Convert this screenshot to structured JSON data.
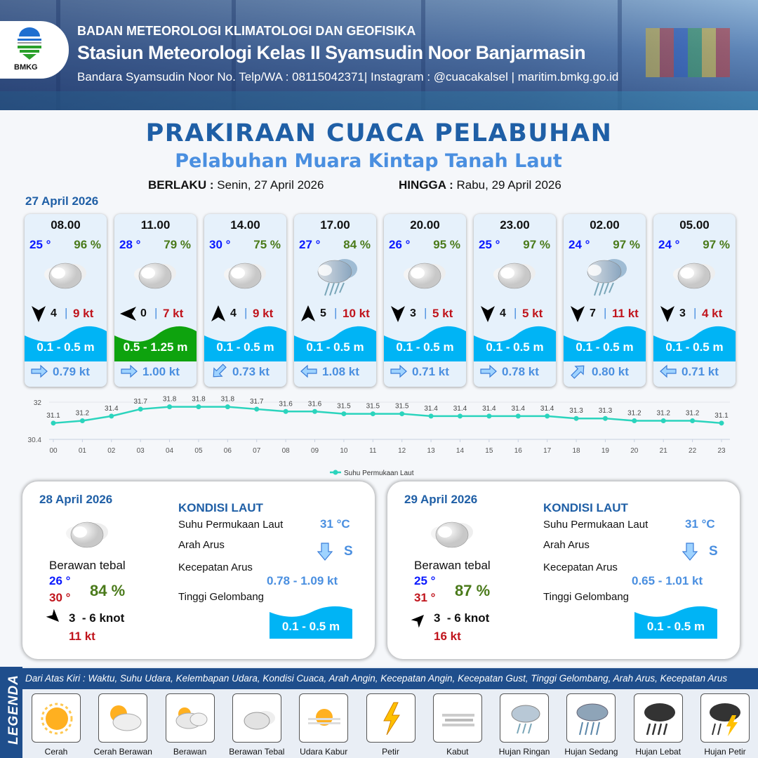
{
  "header": {
    "agency": "BADAN METEOROLOGI KLIMATOLOGI DAN GEOFISIKA",
    "station": "Stasiun Meteorologi Kelas II Syamsudin Noor Banjarmasin",
    "contact": "Bandara Syamsudin Noor No. Telp/WA : 08115042371| Instagram : @cuacakalsel | maritim.bmkg.go.id",
    "logo_text": "BMKG"
  },
  "title": "PRAKIRAAN CUACA PELABUHAN",
  "subtitle": "Pelabuhan Muara Kintap Tanah Laut",
  "validity": {
    "from_label": "BERLAKU :",
    "from_value": "Senin, 27 April 2026",
    "to_label": "HINGGA :",
    "to_value": "Rabu, 29 April 2026"
  },
  "day1_date": "27 April 2026",
  "colors": {
    "wave_low": "#00b4f5",
    "wave_moderate": "#0ea30e",
    "accent": "#1f5fa6",
    "sst_line": "#2bd4bd"
  },
  "forecasts": [
    {
      "time": "08.00",
      "temp": "25 °",
      "humidity": "96 %",
      "weather_icon": "berawan-tebal",
      "wind_dir": "arrow-down",
      "wind_speed": "4",
      "gust": "9 kt",
      "wave": "0.1 - 0.5 m",
      "wave_class": "low",
      "current_dir": "arrow-left",
      "current_speed": "0.79 kt"
    },
    {
      "time": "11.00",
      "temp": "28 °",
      "humidity": "79 %",
      "weather_icon": "berawan-tebal",
      "wind_dir": "arrow-left",
      "wind_speed": "0",
      "gust": "7 kt",
      "wave": "0.5 - 1.25 m",
      "wave_class": "moderate",
      "current_dir": "arrow-left",
      "current_speed": "1.00 kt"
    },
    {
      "time": "14.00",
      "temp": "30 °",
      "humidity": "75 %",
      "weather_icon": "berawan-tebal",
      "wind_dir": "arrow-up",
      "wind_speed": "4",
      "gust": "9 kt",
      "wave": "0.1 - 0.5 m",
      "wave_class": "low",
      "current_dir": "arrow-up-right",
      "current_speed": "0.73 kt"
    },
    {
      "time": "17.00",
      "temp": "27 °",
      "humidity": "84 %",
      "weather_icon": "hujan-ringan",
      "wind_dir": "arrow-up",
      "wind_speed": "5",
      "gust": "10 kt",
      "wave": "0.1 - 0.5 m",
      "wave_class": "low",
      "current_dir": "arrow-right",
      "current_speed": "1.08 kt"
    },
    {
      "time": "20.00",
      "temp": "26 °",
      "humidity": "95 %",
      "weather_icon": "berawan-tebal",
      "wind_dir": "arrow-down",
      "wind_speed": "3",
      "gust": "5 kt",
      "wave": "0.1 - 0.5 m",
      "wave_class": "low",
      "current_dir": "arrow-left",
      "current_speed": "0.71 kt"
    },
    {
      "time": "23.00",
      "temp": "25 °",
      "humidity": "97 %",
      "weather_icon": "berawan-tebal",
      "wind_dir": "arrow-down",
      "wind_speed": "4",
      "gust": "5 kt",
      "wave": "0.1 - 0.5 m",
      "wave_class": "low",
      "current_dir": "arrow-left",
      "current_speed": "0.78 kt"
    },
    {
      "time": "02.00",
      "temp": "24 °",
      "humidity": "97 %",
      "weather_icon": "hujan-ringan",
      "wind_dir": "arrow-down",
      "wind_speed": "7",
      "gust": "11 kt",
      "wave": "0.1 - 0.5 m",
      "wave_class": "low",
      "current_dir": "arrow-down-left",
      "current_speed": "0.80 kt"
    },
    {
      "time": "05.00",
      "temp": "24 °",
      "humidity": "97 %",
      "weather_icon": "berawan-tebal",
      "wind_dir": "arrow-down",
      "wind_speed": "3",
      "gust": "4 kt",
      "wave": "0.1 - 0.5 m",
      "wave_class": "low",
      "current_dir": "arrow-right",
      "current_speed": "0.71 kt"
    }
  ],
  "chart_data": {
    "type": "line",
    "categories": [
      "00",
      "01",
      "02",
      "03",
      "04",
      "05",
      "06",
      "07",
      "08",
      "09",
      "10",
      "11",
      "12",
      "13",
      "14",
      "15",
      "16",
      "17",
      "18",
      "19",
      "20",
      "21",
      "22",
      "23"
    ],
    "series": [
      {
        "name": "Suhu Permukaan Laut",
        "values": [
          31.1,
          31.2,
          31.4,
          31.7,
          31.8,
          31.8,
          31.8,
          31.7,
          31.6,
          31.6,
          31.5,
          31.5,
          31.5,
          31.4,
          31.4,
          31.4,
          31.4,
          31.4,
          31.3,
          31.3,
          31.2,
          31.2,
          31.2,
          31.1
        ]
      }
    ],
    "yticks": [
      "32",
      "30.4"
    ],
    "ylim": [
      30.4,
      32
    ],
    "legend": "bottom",
    "grid": true
  },
  "days": [
    {
      "date": "28 April 2026",
      "condition": "Berawan tebal",
      "weather_icon": "berawan-tebal",
      "temp_min": "26 °",
      "temp_max": "30 °",
      "humidity": "84 %",
      "wind_dir": "arrow-down-right",
      "wind_speed": "3  - 6 knot",
      "gust": "11 kt",
      "sea_title": "KONDISI LAUT",
      "sst_label": "Suhu Permukaan Laut",
      "sst": "31 °C",
      "current_dir_label": "Arah Arus",
      "current_dir": "S",
      "current_speed_label": "Kecepatan Arus",
      "current_speed": "0.78 - 1.09 kt",
      "wave_label": "Tinggi Gelombang",
      "wave": "0.1 - 0.5 m"
    },
    {
      "date": "29 April 2026",
      "condition": "Berawan tebal",
      "weather_icon": "berawan-tebal",
      "temp_min": "25 °",
      "temp_max": "31 °",
      "humidity": "87 %",
      "wind_dir": "arrow-up-right",
      "wind_speed": "3  - 6 knot",
      "gust": "16 kt",
      "sea_title": "KONDISI LAUT",
      "sst_label": "Suhu Permukaan Laut",
      "sst": "31 °C",
      "current_dir_label": "Arah Arus",
      "current_dir": "S",
      "current_speed_label": "Kecepatan Arus",
      "current_speed": "0.65 - 1.01 kt",
      "wave_label": "Tinggi Gelombang",
      "wave": "0.1 - 0.5 m"
    }
  ],
  "legend": {
    "title": "LEGENDA",
    "description": "Dari Atas Kiri : Waktu, Suhu Udara, Kelembapan Udara, Kondisi Cuaca, Arah Angin, Kecepatan Angin, Kecepatan Gust, Tinggi Gelombang, Arah Arus, Kecepatan Arus",
    "items": [
      {
        "label": "Cerah",
        "icon": "cerah"
      },
      {
        "label": "Cerah Berawan",
        "icon": "cerah-berawan"
      },
      {
        "label": "Berawan",
        "icon": "berawan"
      },
      {
        "label": "Berawan Tebal",
        "icon": "berawan-tebal"
      },
      {
        "label": "Udara Kabur",
        "icon": "udara-kabur"
      },
      {
        "label": "Petir",
        "icon": "petir"
      },
      {
        "label": "Kabut",
        "icon": "kabut"
      },
      {
        "label": "Hujan Ringan",
        "icon": "hujan-ringan"
      },
      {
        "label": "Hujan Sedang",
        "icon": "hujan-sedang"
      },
      {
        "label": "Hujan Lebat",
        "icon": "hujan-lebat"
      },
      {
        "label": "Hujan Petir",
        "icon": "hujan-petir"
      }
    ]
  }
}
